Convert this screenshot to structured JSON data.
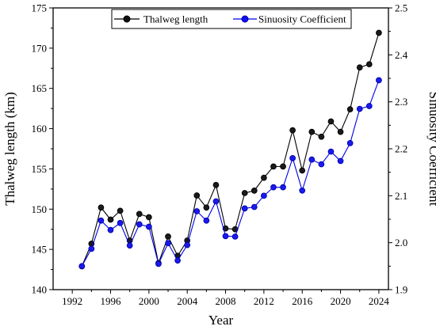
{
  "chart_data": {
    "type": "line",
    "xlabel": "Year",
    "ylabel_left": "Thalweg length  (km)",
    "ylabel_right": "Sinuosity Coefficient",
    "xlim": [
      1990,
      2025
    ],
    "ylim_left": [
      140,
      175
    ],
    "ylim_right": [
      1.9,
      2.5
    ],
    "x_ticks": [
      1992,
      1996,
      2000,
      2004,
      2008,
      2012,
      2016,
      2020,
      2024
    ],
    "y_left_ticks": [
      140,
      145,
      150,
      155,
      160,
      165,
      170,
      175
    ],
    "y_right_ticks": [
      1.9,
      2.0,
      2.1,
      2.2,
      2.3,
      2.4,
      2.5
    ],
    "legend_placement": "top",
    "x": [
      1993,
      1994,
      1995,
      1996,
      1997,
      1998,
      1999,
      2000,
      2001,
      2002,
      2003,
      2004,
      2005,
      2006,
      2007,
      2008,
      2009,
      2010,
      2011,
      2012,
      2013,
      2014,
      2015,
      2016,
      2017,
      2018,
      2019,
      2020,
      2021,
      2022,
      2023,
      2024
    ],
    "series": [
      {
        "name": "Thalweg length",
        "axis": "left",
        "color": "#000000",
        "values": [
          142.9,
          145.7,
          150.2,
          148.7,
          149.8,
          146.1,
          149.4,
          149.0,
          143.3,
          146.6,
          144.2,
          146.1,
          151.7,
          150.2,
          153.0,
          147.6,
          147.5,
          152.0,
          152.3,
          153.9,
          155.3,
          155.3,
          159.8,
          154.8,
          159.6,
          159.0,
          160.9,
          159.6,
          162.4,
          167.6,
          168.0,
          171.9
        ]
      },
      {
        "name": "Sinuosity Coefficient",
        "axis": "right",
        "color": "#0000ee",
        "values": [
          1.95,
          1.987,
          2.047,
          2.027,
          2.042,
          1.994,
          2.039,
          2.034,
          1.955,
          1.999,
          1.962,
          1.995,
          2.067,
          2.047,
          2.088,
          2.014,
          2.013,
          2.073,
          2.076,
          2.1,
          2.118,
          2.118,
          2.18,
          2.111,
          2.177,
          2.167,
          2.194,
          2.174,
          2.212,
          2.285,
          2.291,
          2.346
        ]
      }
    ]
  }
}
